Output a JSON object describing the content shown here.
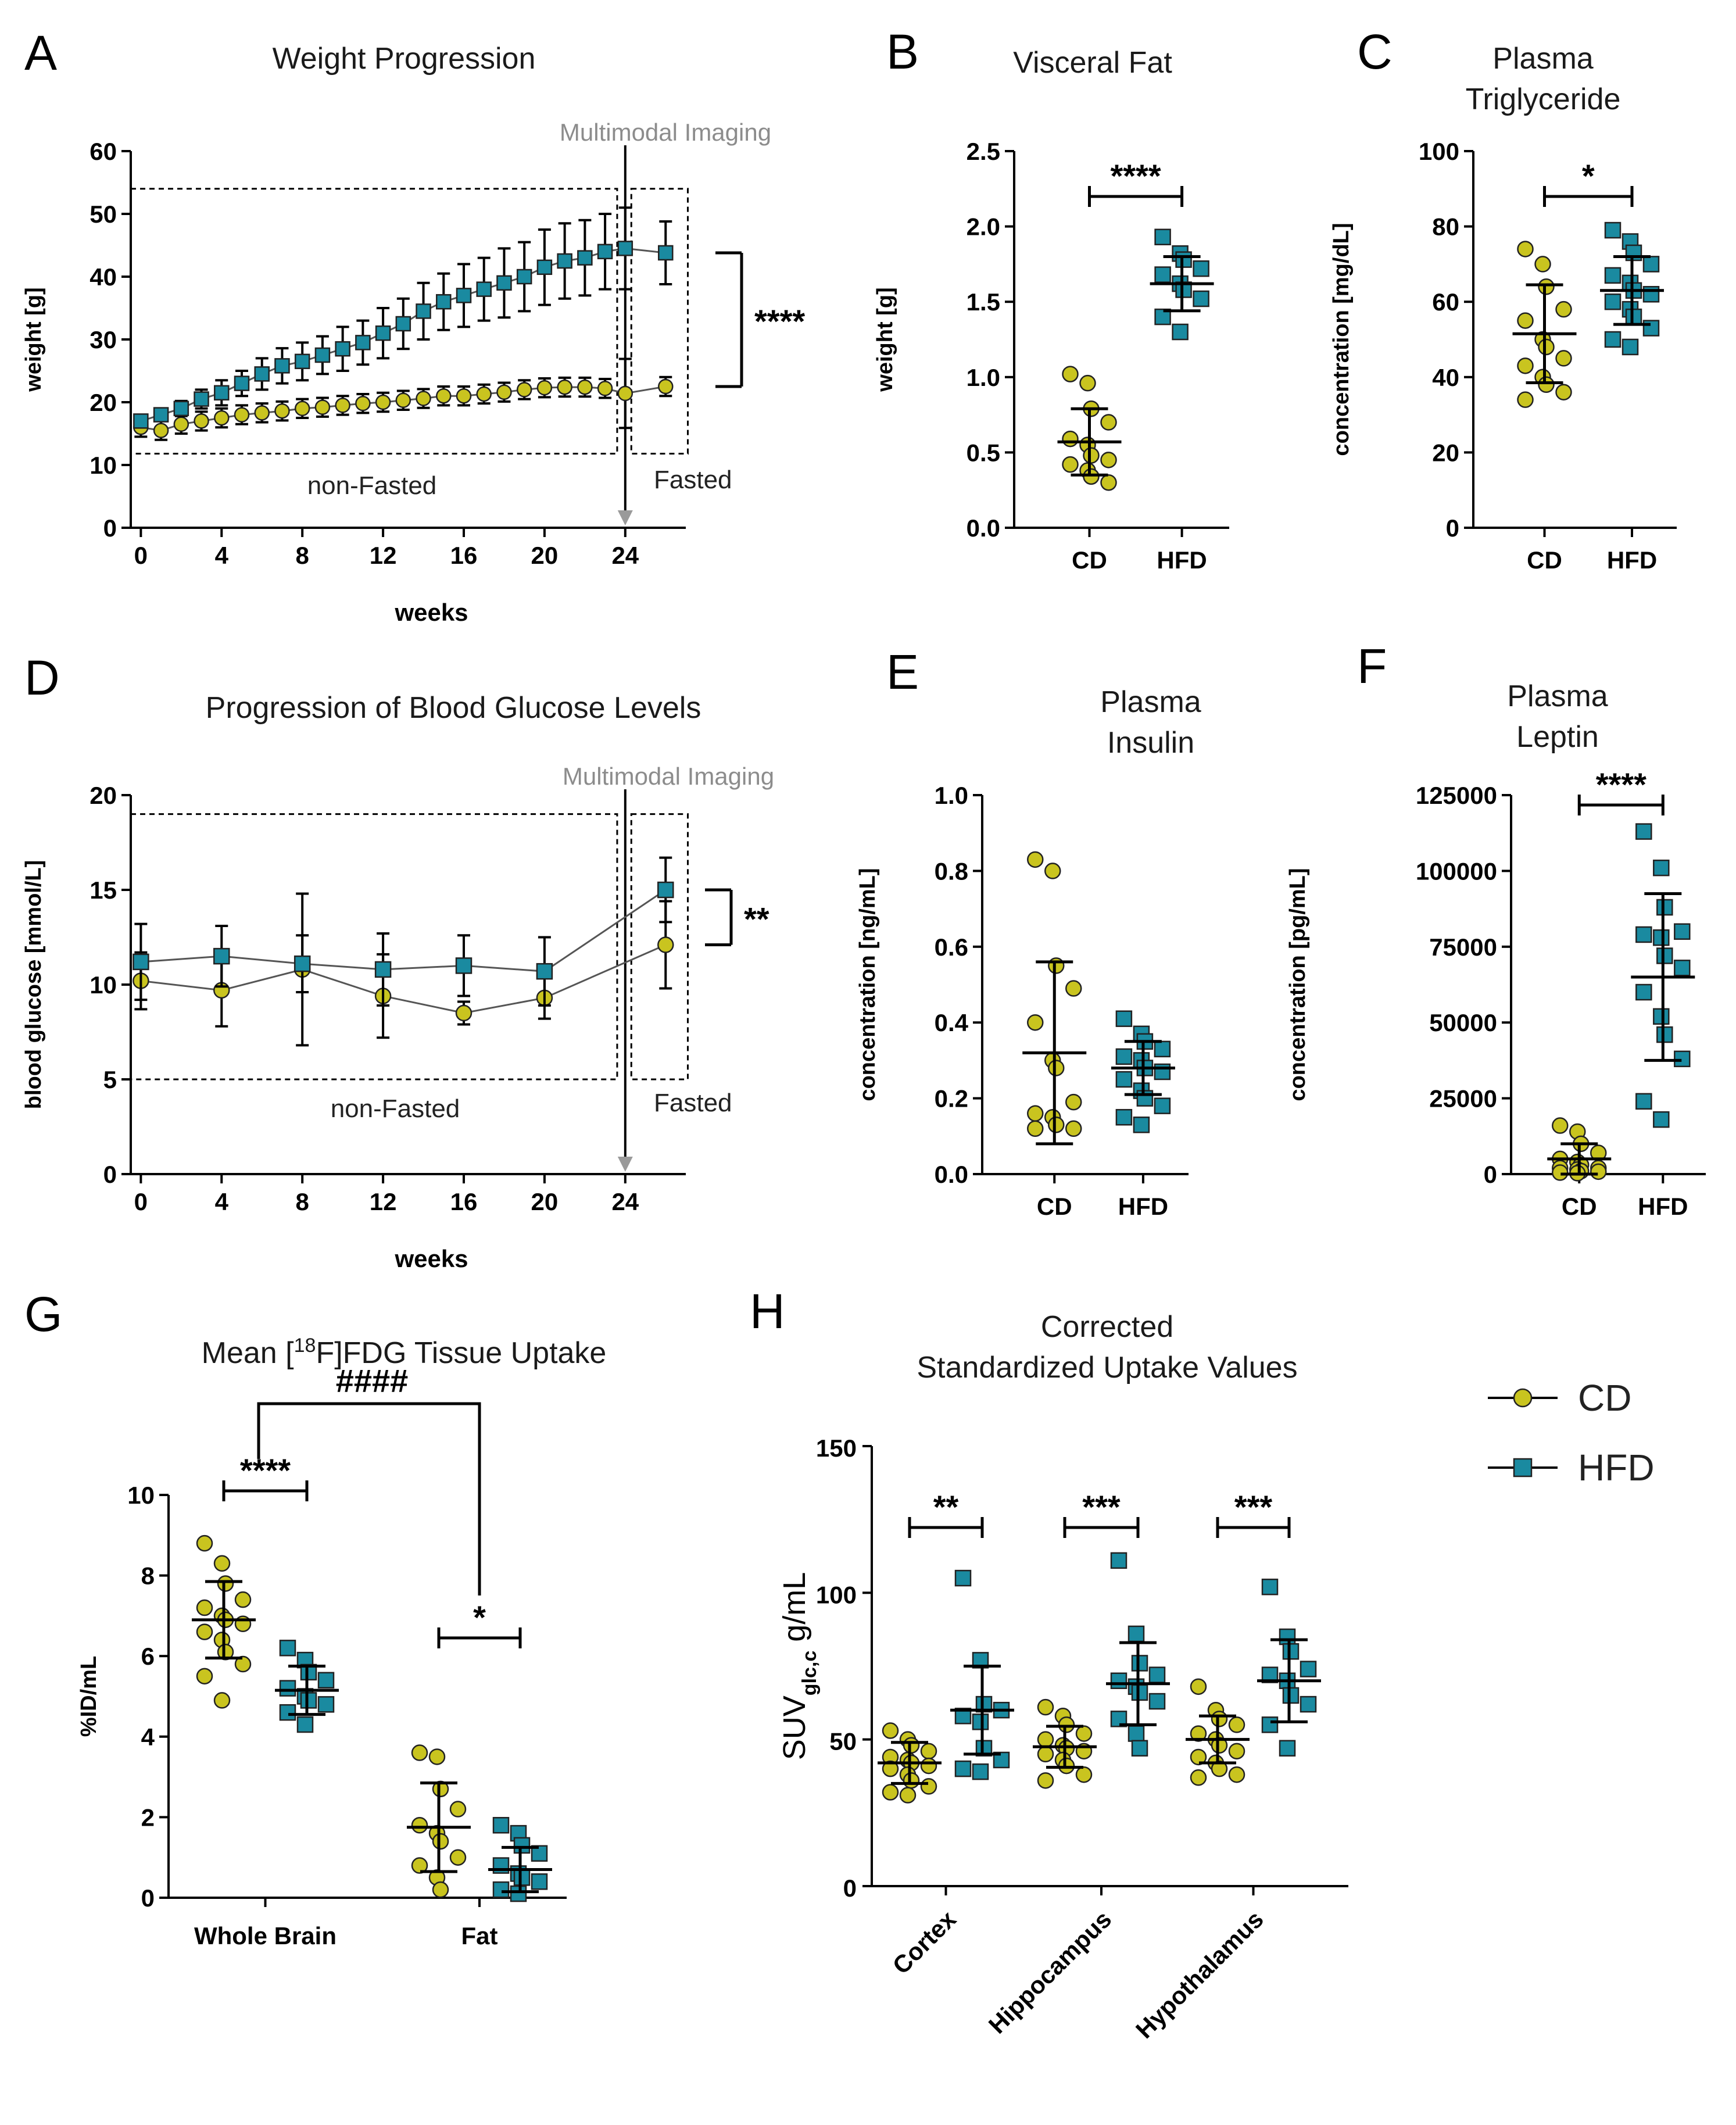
{
  "colors": {
    "cd": "#c9c41f",
    "hfd": "#1a8aa0",
    "axis": "#000000",
    "arrow": "#9a9a9a"
  },
  "legend": {
    "items": [
      {
        "label": "CD",
        "shape": "circle"
      },
      {
        "label": "HFD",
        "shape": "square"
      }
    ]
  },
  "chart_data": [
    {
      "id": "A",
      "letter": "A",
      "type": "line",
      "title": "Weight Progression",
      "xlabel": "weeks",
      "ylabel": "weight [g]",
      "xlim": [
        -0.5,
        27
      ],
      "ylim": [
        0,
        60
      ],
      "xticks": [
        "0",
        "4",
        "8",
        "12",
        "16",
        "20",
        "24"
      ],
      "yticks": [
        "0",
        "10",
        "20",
        "30",
        "40",
        "50",
        "60"
      ],
      "x": [
        0,
        1,
        2,
        3,
        4,
        5,
        6,
        7,
        8,
        9,
        10,
        11,
        12,
        13,
        14,
        15,
        16,
        17,
        18,
        19,
        20,
        21,
        22,
        23,
        24,
        26
      ],
      "series": [
        {
          "name": "CD",
          "values": [
            16,
            15.5,
            16.5,
            17,
            17.5,
            18,
            18.3,
            18.6,
            19,
            19.2,
            19.5,
            19.8,
            20,
            20.3,
            20.6,
            21,
            21,
            21.3,
            21.6,
            22,
            22.3,
            22.4,
            22.4,
            22.2,
            21.4,
            22.5
          ],
          "err": [
            1.5,
            1.5,
            1.5,
            1.5,
            1.5,
            1.5,
            1.5,
            1.5,
            1.5,
            1.5,
            1.5,
            1.5,
            1.5,
            1.5,
            1.5,
            1.5,
            1.5,
            1.5,
            1.5,
            1.5,
            1.5,
            1.5,
            1.5,
            1.5,
            5.5,
            1.5
          ]
        },
        {
          "name": "HFD",
          "values": [
            17,
            18,
            19,
            20.5,
            21.5,
            23,
            24.5,
            25.8,
            26.5,
            27.5,
            28.5,
            29.5,
            31,
            32.5,
            34.5,
            36,
            37,
            38,
            39,
            40,
            41.5,
            42.5,
            43,
            44,
            44.5,
            43.8
          ],
          "err": [
            1,
            1,
            1.2,
            1.5,
            2,
            2,
            2.5,
            2.8,
            3,
            3,
            3.5,
            3.5,
            4,
            4,
            4.5,
            4.5,
            5,
            5,
            5.5,
            5.5,
            6,
            6,
            6,
            6,
            6.5,
            5
          ]
        }
      ],
      "annotations": {
        "imaging": "Multimodal Imaging",
        "nonfasted": "non-Fasted",
        "fasted": "Fasted",
        "sig": "****"
      }
    },
    {
      "id": "B",
      "letter": "B",
      "type": "scatter",
      "title": "Visceral Fat",
      "ylabel": "weight [g]",
      "categories": [
        "CD",
        "HFD"
      ],
      "ylim": [
        0,
        2.5
      ],
      "yticks": [
        "0.0",
        "0.5",
        "1.0",
        "1.5",
        "2.0",
        "2.5"
      ],
      "series": [
        {
          "name": "CD",
          "values": [
            1.02,
            0.96,
            0.79,
            0.7,
            0.59,
            0.55,
            0.48,
            0.45,
            0.42,
            0.38,
            0.34,
            0.3
          ],
          "mean": 0.57,
          "sd": 0.22
        },
        {
          "name": "HFD",
          "values": [
            1.93,
            1.82,
            1.78,
            1.72,
            1.68,
            1.62,
            1.58,
            1.52,
            1.4,
            1.3
          ],
          "mean": 1.62,
          "sd": 0.18
        }
      ],
      "sig": "****"
    },
    {
      "id": "C",
      "letter": "C",
      "type": "scatter",
      "title": "Plasma Triglyceride",
      "title_lines": [
        "Plasma",
        "Triglyceride"
      ],
      "ylabel": "concentration [mg/dL]",
      "categories": [
        "CD",
        "HFD"
      ],
      "ylim": [
        0,
        100
      ],
      "yticks": [
        "0",
        "20",
        "40",
        "60",
        "80",
        "100"
      ],
      "series": [
        {
          "name": "CD",
          "values": [
            74,
            70,
            64,
            58,
            55,
            50,
            48,
            45,
            43,
            40,
            38,
            36,
            34
          ],
          "mean": 51.5,
          "sd": 13
        },
        {
          "name": "HFD",
          "values": [
            79,
            76,
            73,
            70,
            67,
            65,
            63,
            62,
            60,
            58,
            56,
            53,
            50,
            48
          ],
          "mean": 63,
          "sd": 9
        }
      ],
      "sig": "*"
    },
    {
      "id": "D",
      "letter": "D",
      "type": "line",
      "title": "Progression of Blood Glucose Levels",
      "xlabel": "weeks",
      "ylabel": "blood glucose  [mmol/L]",
      "xlim": [
        -0.5,
        27
      ],
      "ylim": [
        0,
        20
      ],
      "xticks": [
        "0",
        "4",
        "8",
        "12",
        "16",
        "20",
        "24"
      ],
      "yticks": [
        "0",
        "5",
        "10",
        "15",
        "20"
      ],
      "x": [
        0,
        4,
        8,
        12,
        16,
        20,
        26
      ],
      "series": [
        {
          "name": "CD",
          "values": [
            10.2,
            9.7,
            10.8,
            9.4,
            8.5,
            9.3,
            12.1
          ],
          "err": [
            1.5,
            1.9,
            4.0,
            2.2,
            0.6,
            1.1,
            2.3
          ]
        },
        {
          "name": "HFD",
          "values": [
            11.2,
            11.5,
            11.1,
            10.8,
            11.0,
            10.7,
            15.0
          ],
          "err": [
            2.0,
            1.6,
            1.5,
            1.9,
            1.6,
            1.8,
            1.7
          ]
        }
      ],
      "annotations": {
        "imaging": "Multimodal Imaging",
        "nonfasted": "non-Fasted",
        "fasted": "Fasted",
        "sig": "**"
      }
    },
    {
      "id": "E",
      "letter": "E",
      "type": "scatter",
      "title": "Plasma Insulin",
      "title_lines": [
        "Plasma",
        "Insulin"
      ],
      "ylabel": "concentration [ng/mL]",
      "categories": [
        "CD",
        "HFD"
      ],
      "ylim": [
        0,
        1.0
      ],
      "yticks": [
        "0.0",
        "0.2",
        "0.4",
        "0.6",
        "0.8",
        "1.0"
      ],
      "series": [
        {
          "name": "CD",
          "values": [
            0.83,
            0.8,
            0.55,
            0.49,
            0.4,
            0.3,
            0.28,
            0.19,
            0.16,
            0.15,
            0.13,
            0.12,
            0.12
          ],
          "mean": 0.32,
          "sd": 0.24
        },
        {
          "name": "HFD",
          "values": [
            0.41,
            0.37,
            0.35,
            0.33,
            0.31,
            0.3,
            0.28,
            0.27,
            0.25,
            0.22,
            0.2,
            0.18,
            0.15,
            0.13
          ],
          "mean": 0.28,
          "sd": 0.07
        }
      ],
      "sig": ""
    },
    {
      "id": "F",
      "letter": "F",
      "type": "scatter",
      "title": "Plasma Leptin",
      "title_lines": [
        "Plasma",
        "Leptin"
      ],
      "ylabel": "concentration [pg/mL]",
      "categories": [
        "CD",
        "HFD"
      ],
      "ylim": [
        0,
        125000
      ],
      "yticks": [
        "0",
        "25000",
        "50000",
        "75000",
        "100000",
        "125000"
      ],
      "series": [
        {
          "name": "CD",
          "values": [
            16000,
            14000,
            10000,
            7000,
            5000,
            4000,
            3000,
            2000,
            2000,
            1500,
            1000,
            800,
            500,
            300
          ],
          "mean": 5000,
          "sd": 5000
        },
        {
          "name": "HFD",
          "values": [
            113000,
            101000,
            88000,
            80000,
            79000,
            78000,
            72000,
            68000,
            60000,
            52000,
            46000,
            38000,
            24000,
            18000
          ],
          "mean": 65000,
          "sd": 27500
        }
      ],
      "sig": "****"
    },
    {
      "id": "G",
      "letter": "G",
      "type": "scatter",
      "title_parts": {
        "before": "Mean [",
        "sup": "18",
        "after": "F]FDG Tissue Uptake"
      },
      "ylabel": "%ID/mL",
      "categories": [
        "Whole Brain",
        "Fat"
      ],
      "ylim": [
        0,
        10
      ],
      "yticks": [
        "0",
        "2",
        "4",
        "6",
        "8",
        "10"
      ],
      "groups": [
        {
          "CD": {
            "values": [
              8.8,
              8.3,
              7.8,
              7.4,
              7.2,
              7.0,
              6.9,
              6.8,
              6.6,
              6.4,
              6.1,
              5.8,
              5.5,
              4.9
            ],
            "mean": 6.9,
            "sd": 0.95
          },
          "HFD": {
            "values": [
              6.2,
              5.9,
              5.6,
              5.4,
              5.2,
              5.0,
              4.9,
              4.8,
              4.6,
              4.3
            ],
            "mean": 5.15,
            "sd": 0.6
          }
        },
        {
          "CD": {
            "values": [
              3.6,
              3.5,
              2.7,
              2.2,
              1.8,
              1.6,
              1.4,
              1.0,
              0.8,
              0.5,
              0.2
            ],
            "mean": 1.75,
            "sd": 1.1
          },
          "HFD": {
            "values": [
              1.8,
              1.6,
              1.3,
              1.1,
              0.8,
              0.6,
              0.5,
              0.4,
              0.2,
              0.1
            ],
            "mean": 0.7,
            "sd": 0.55
          }
        }
      ],
      "sig": [
        "****",
        "*"
      ],
      "sig_between": "####"
    },
    {
      "id": "H",
      "letter": "H",
      "type": "scatter",
      "title_lines": [
        "Corrected",
        "Standardized Uptake Values"
      ],
      "ylabel_parts": {
        "before": "SUV",
        "sub": "glc,c",
        "after": " g/mL"
      },
      "categories": [
        "Cortex",
        "Hippocampus",
        "Hypothalamus"
      ],
      "ylim": [
        0,
        150
      ],
      "yticks": [
        "0",
        "50",
        "100",
        "150"
      ],
      "groups": [
        {
          "CD": {
            "values": [
              53,
              50,
              48,
              46,
              44,
              43,
              42,
              41,
              40,
              38,
              36,
              34,
              32,
              31
            ],
            "mean": 42,
            "sd": 7
          },
          "HFD": {
            "values": [
              105,
              77,
              62,
              60,
              58,
              56,
              47,
              43,
              40,
              39
            ],
            "mean": 60,
            "sd": 15
          }
        },
        {
          "CD": {
            "values": [
              61,
              58,
              55,
              52,
              50,
              48,
              47,
              46,
              45,
              43,
              41,
              38,
              36
            ],
            "mean": 47.5,
            "sd": 7
          },
          "HFD": {
            "values": [
              111,
              86,
              76,
              72,
              70,
              68,
              66,
              63,
              57,
              52,
              47
            ],
            "mean": 69,
            "sd": 14
          }
        },
        {
          "CD": {
            "values": [
              68,
              60,
              57,
              55,
              52,
              50,
              48,
              46,
              44,
              42,
              40,
              38,
              37
            ],
            "mean": 50,
            "sd": 8
          },
          "HFD": {
            "values": [
              102,
              85,
              80,
              74,
              72,
              70,
              65,
              62,
              55,
              47
            ],
            "mean": 70,
            "sd": 14
          }
        }
      ],
      "sig": [
        "**",
        "***",
        "***"
      ]
    }
  ]
}
